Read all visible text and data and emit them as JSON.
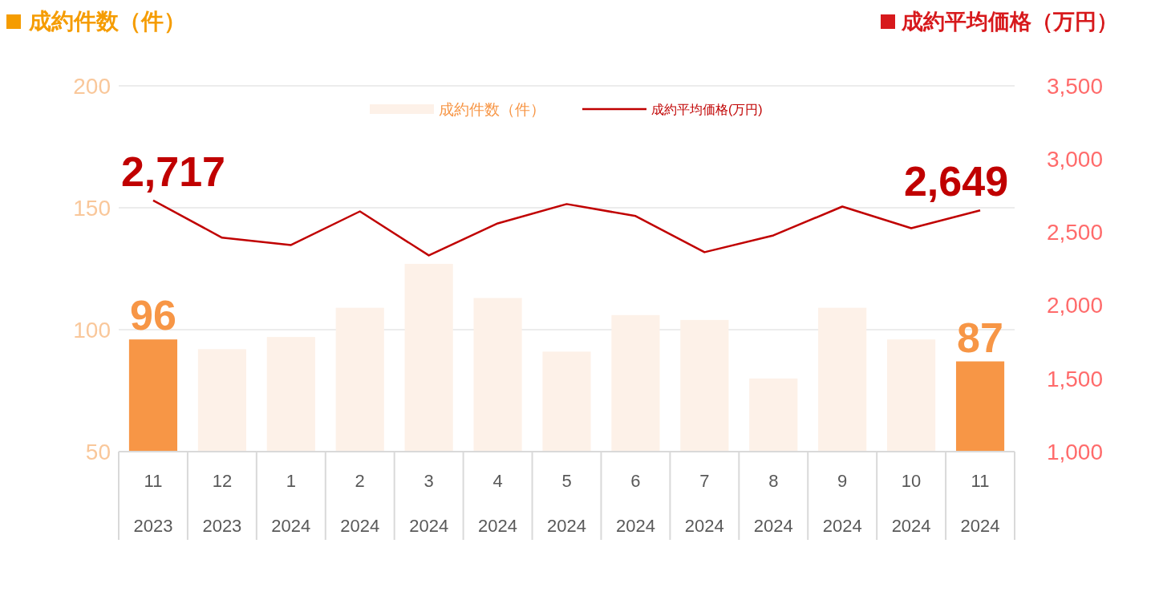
{
  "chart_data": {
    "type": "bar",
    "ylabel": "成約件数（件）",
    "y2label": "成約平均価格（万円）",
    "categories": [
      "11\n2023",
      "12\n2023",
      "1\n2024",
      "2\n2024",
      "3\n2024",
      "4\n2024",
      "5\n2024",
      "6\n2024",
      "7\n2024",
      "8\n2024",
      "9\n2024",
      "10\n2024",
      "11\n2024"
    ],
    "series": [
      {
        "name": "成約件数（件）",
        "color": "#fdf1e8",
        "colors": [
          "#f79646",
          "#fdf1e8",
          "#fdf1e8",
          "#fdf1e8",
          "#fdf1e8",
          "#fdf1e8",
          "#fdf1e8",
          "#fdf1e8",
          "#fdf1e8",
          "#fdf1e8",
          "#fdf1e8",
          "#fdf1e8",
          "#f79646"
        ],
        "values": [
          96,
          92,
          97,
          109,
          127,
          113,
          91,
          106,
          104,
          80,
          109,
          96,
          87
        ],
        "value_labels": [
          "96",
          null,
          null,
          null,
          null,
          null,
          null,
          null,
          null,
          null,
          null,
          null,
          "87"
        ]
      },
      {
        "name": "成約平均価格(万円)",
        "type": "line",
        "axis": "y2",
        "color": "#c00000",
        "values": [
          2717,
          2462,
          2412,
          2642,
          2341,
          2560,
          2692,
          2610,
          2363,
          2478,
          2675,
          2527,
          2649
        ],
        "value_labels": [
          "2,717",
          null,
          null,
          null,
          null,
          null,
          null,
          null,
          null,
          null,
          null,
          null,
          "2,649"
        ]
      }
    ],
    "ylim": [
      50,
      200
    ],
    "yticks": [
      50,
      100,
      150,
      200
    ],
    "y2lim": [
      1000,
      3500
    ],
    "y2ticks": [
      {
        "value": 1000,
        "label": "1,000"
      },
      {
        "value": 1500,
        "label": "1,500"
      },
      {
        "value": 2000,
        "label": "2,000"
      },
      {
        "value": 2500,
        "label": "2,500"
      },
      {
        "value": 3000,
        "label": "3,000"
      },
      {
        "value": 3500,
        "label": "3,500"
      }
    ],
    "grid": "y",
    "legend": "top",
    "marker": "none",
    "line_style": "solid"
  }
}
